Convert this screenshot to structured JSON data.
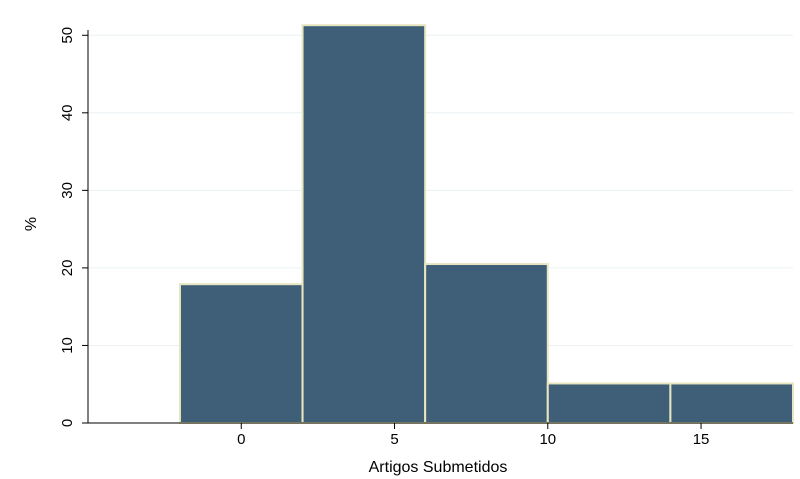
{
  "chart_data": {
    "type": "bar",
    "xlabel": "Artigos Submetidos",
    "ylabel": "%",
    "xlim": [
      -5,
      18
    ],
    "ylim": [
      0,
      53
    ],
    "x_ticks": [
      0,
      5,
      10,
      15
    ],
    "y_ticks": [
      0,
      10,
      20,
      30,
      40,
      50
    ],
    "bins": [
      {
        "start": -2,
        "end": 2,
        "value": 17.9
      },
      {
        "start": 2,
        "end": 6,
        "value": 51.3
      },
      {
        "start": 6,
        "end": 10,
        "value": 20.5
      },
      {
        "start": 10,
        "end": 14,
        "value": 5.1
      },
      {
        "start": 14,
        "end": 18,
        "value": 5.1
      }
    ],
    "grid": true,
    "colors": {
      "bar_fill": "#3e5f77",
      "bar_edge": "#e8e6c0",
      "grid": "#eaf0f3",
      "axis": "#000000"
    }
  }
}
